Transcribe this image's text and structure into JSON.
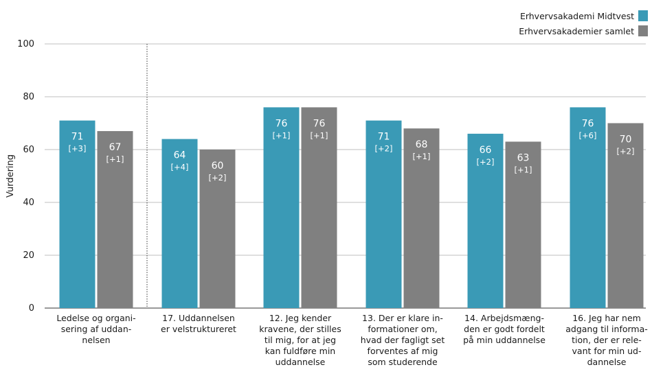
{
  "chart_data": {
    "type": "bar",
    "ylabel": "Vurdering",
    "ylim": [
      0,
      100
    ],
    "yticks": [
      0,
      20,
      40,
      60,
      80,
      100
    ],
    "legend_position": "top-right",
    "colors": {
      "Erhvervsakademi Midtvest": "#3a9ab6",
      "Erhvervsakademier samlet": "#808080"
    },
    "categories": [
      [
        "Ledelse og organi-",
        "sering af uddan-",
        "nelsen"
      ],
      [
        "17. Uddannelsen",
        "er velstruktureret"
      ],
      [
        "12. Jeg kender",
        "kravene, der stilles",
        "til mig, for at jeg",
        "kan fuldføre min",
        "uddannelse"
      ],
      [
        "13. Der er klare in-",
        "formationer om,",
        "hvad der fagligt set",
        "forventes af mig",
        "som studerende"
      ],
      [
        "14. Arbejdsmæng-",
        "den er godt fordelt",
        "på min uddannelse"
      ],
      [
        "16. Jeg har nem",
        "adgang til informa-",
        "tion, der er rele-",
        "vant for min ud-",
        "dannelse"
      ]
    ],
    "series": [
      {
        "name": "Erhvervsakademi Midtvest",
        "values": [
          71,
          64,
          76,
          71,
          66,
          76
        ],
        "labels": [
          "71",
          "64",
          "76",
          "71",
          "66",
          "76"
        ],
        "changes": [
          "[+3]",
          "[+4]",
          "[+1]",
          "[+2]",
          "[+2]",
          "[+6]"
        ]
      },
      {
        "name": "Erhvervsakademier samlet",
        "values": [
          67,
          60,
          76,
          68,
          63,
          70
        ],
        "labels": [
          "67",
          "60",
          "76",
          "68",
          "63",
          "70"
        ],
        "changes": [
          "[+1]",
          "[+2]",
          "[+1]",
          "[+1]",
          "[+1]",
          "[+2]"
        ]
      }
    ]
  }
}
